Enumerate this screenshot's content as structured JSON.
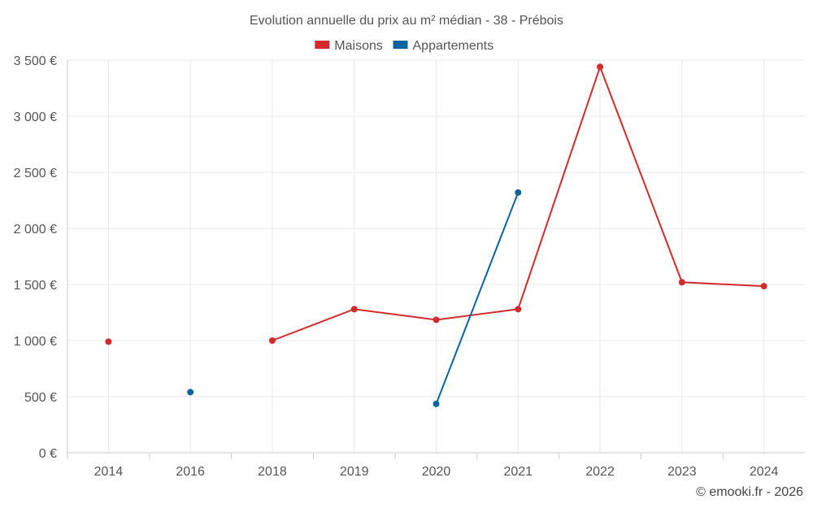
{
  "chart_data": {
    "type": "line",
    "title": "Evolution annuelle du prix au m² médian - 38 - Prébois",
    "categories": [
      "2014",
      "2016",
      "2018",
      "2019",
      "2020",
      "2021",
      "2022",
      "2023",
      "2024"
    ],
    "series": [
      {
        "name": "Maisons",
        "color": "#d32b2b",
        "values": [
          990,
          null,
          1000,
          1280,
          1185,
          1280,
          3440,
          1520,
          1485
        ]
      },
      {
        "name": "Appartements",
        "color": "#0b64a0",
        "values": [
          null,
          540,
          null,
          null,
          435,
          2320,
          null,
          null,
          null
        ]
      }
    ],
    "ylim": [
      0,
      3500
    ],
    "yticks": [
      0,
      500,
      1000,
      1500,
      2000,
      2500,
      3000,
      3500
    ],
    "ytick_labels": [
      "0 €",
      "500 €",
      "1 000 €",
      "1 500 €",
      "2 000 €",
      "2 500 €",
      "3 000 €",
      "3 500 €"
    ],
    "xlabel": "",
    "ylabel": "",
    "grid": true,
    "legend_position": "top-center"
  },
  "credit": "© emooki.fr - 2026"
}
